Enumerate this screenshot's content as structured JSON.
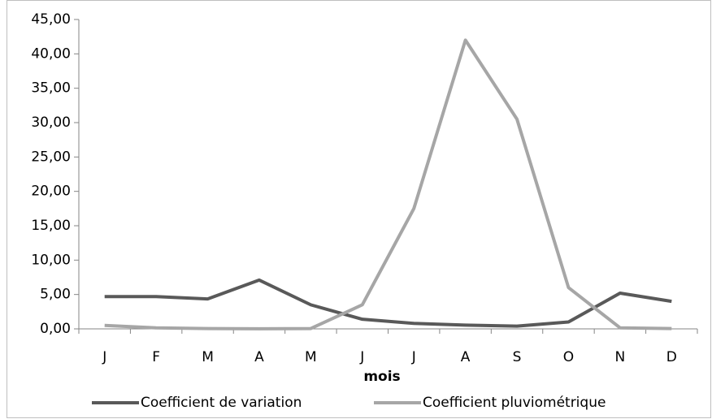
{
  "chart_data": {
    "type": "line",
    "x_label": "mois",
    "categories": [
      "J",
      "F",
      "M",
      "A",
      "M",
      "J",
      "J",
      "A",
      "S",
      "O",
      "N",
      "D"
    ],
    "series": [
      {
        "name": "Coefficient de variation",
        "color": "#595959",
        "values": [
          4.7,
          4.7,
          4.35,
          7.1,
          3.5,
          1.4,
          0.8,
          0.55,
          0.4,
          1.0,
          5.2,
          4.0
        ]
      },
      {
        "name": "Coefficient pluviométrique",
        "color": "#a6a6a6",
        "values": [
          0.5,
          0.15,
          0.05,
          0.02,
          0.05,
          3.5,
          17.5,
          42.0,
          30.5,
          6.0,
          0.15,
          0.05
        ]
      }
    ],
    "ylim": [
      0,
      45
    ],
    "yticks": [
      {
        "value": 0,
        "label": "0,00"
      },
      {
        "value": 5,
        "label": "5,00"
      },
      {
        "value": 10,
        "label": "10,00"
      },
      {
        "value": 15,
        "label": "15,00"
      },
      {
        "value": 20,
        "label": "20,00"
      },
      {
        "value": 25,
        "label": "25,00"
      },
      {
        "value": 30,
        "label": "30,00"
      },
      {
        "value": 35,
        "label": "35,00"
      },
      {
        "value": 40,
        "label": "40,00"
      },
      {
        "value": 45,
        "label": "45,00"
      }
    ],
    "legend": "bottom"
  }
}
